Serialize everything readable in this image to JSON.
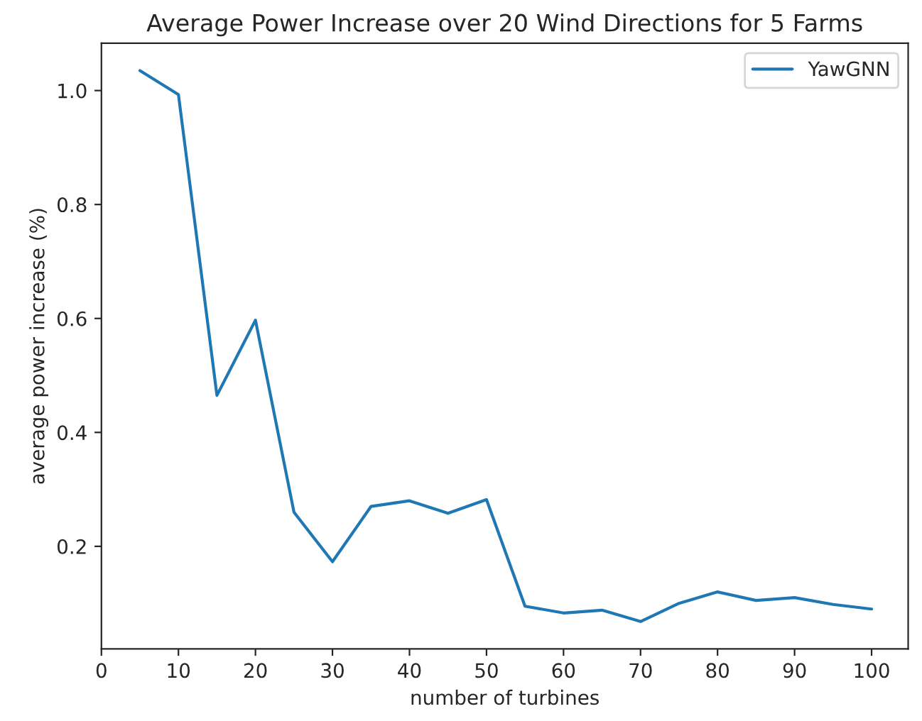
{
  "chart_data": {
    "type": "line",
    "title": "Average Power Increase over 20 Wind Directions for 5 Farms",
    "xlabel": "number of turbines",
    "ylabel": "average power increase (%)",
    "x": [
      5,
      10,
      15,
      20,
      25,
      30,
      35,
      40,
      45,
      50,
      55,
      60,
      65,
      70,
      75,
      80,
      85,
      90,
      95,
      100
    ],
    "series": [
      {
        "name": "YawGNN",
        "color": "#1f77b4",
        "values": [
          1.035,
          0.993,
          0.465,
          0.597,
          0.26,
          0.173,
          0.27,
          0.28,
          0.258,
          0.282,
          0.095,
          0.083,
          0.088,
          0.068,
          0.1,
          0.12,
          0.105,
          0.11,
          0.098,
          0.09
        ]
      }
    ],
    "xlim": [
      0,
      104.75
    ],
    "ylim": [
      0.02,
      1.083
    ],
    "xticks": [
      0,
      10,
      20,
      30,
      40,
      50,
      60,
      70,
      80,
      90,
      100
    ],
    "yticks": [
      0.2,
      0.4,
      0.6,
      0.8,
      {
        "value": 1,
        "label": "1.0"
      }
    ],
    "legend": "top right",
    "grid": false,
    "marker": "none",
    "line_style": "solid"
  }
}
